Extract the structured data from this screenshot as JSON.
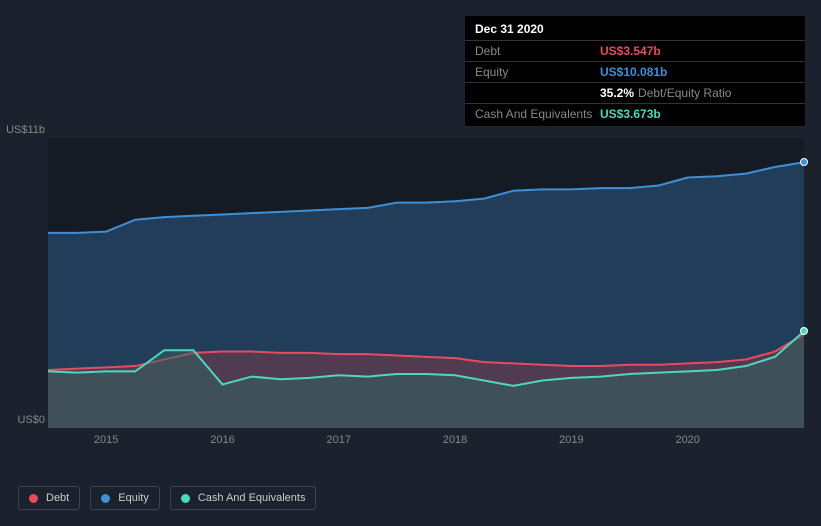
{
  "tooltip": {
    "date": "Dec 31 2020",
    "rows": [
      {
        "label": "Debt",
        "value": "US$3.547b",
        "color": "#e64c5e"
      },
      {
        "label": "Equity",
        "value": "US$10.081b",
        "color": "#3d8fd6"
      },
      {
        "label": "",
        "value": "35.2%",
        "suffix": "Debt/Equity Ratio",
        "color": "#ffffff"
      },
      {
        "label": "Cash And Equivalents",
        "value": "US$3.673b",
        "color": "#4fd6c2"
      }
    ]
  },
  "chart": {
    "type": "area",
    "background_color": "#151b24",
    "page_background": "#1b222d",
    "y_min": 0,
    "y_max": 11,
    "y_labels": [
      {
        "text": "US$11b",
        "v": 11
      },
      {
        "text": "US$0",
        "v": 0
      }
    ],
    "x_min": 2014.5,
    "x_max": 2021,
    "x_ticks": [
      {
        "text": "2015",
        "v": 2015
      },
      {
        "text": "2016",
        "v": 2016
      },
      {
        "text": "2017",
        "v": 2017
      },
      {
        "text": "2018",
        "v": 2018
      },
      {
        "text": "2019",
        "v": 2019
      },
      {
        "text": "2020",
        "v": 2020
      }
    ],
    "series": [
      {
        "name": "Equity",
        "stroke": "#3d8fd6",
        "fill": "#2d5a87",
        "fill_opacity": 0.55,
        "stroke_width": 2,
        "data": [
          [
            2014.5,
            7.4
          ],
          [
            2014.75,
            7.4
          ],
          [
            2015,
            7.45
          ],
          [
            2015.25,
            7.9
          ],
          [
            2015.5,
            8.0
          ],
          [
            2015.75,
            8.05
          ],
          [
            2016,
            8.1
          ],
          [
            2016.25,
            8.15
          ],
          [
            2016.5,
            8.2
          ],
          [
            2016.75,
            8.25
          ],
          [
            2017,
            8.3
          ],
          [
            2017.25,
            8.35
          ],
          [
            2017.5,
            8.55
          ],
          [
            2017.75,
            8.55
          ],
          [
            2018,
            8.6
          ],
          [
            2018.25,
            8.7
          ],
          [
            2018.5,
            9.0
          ],
          [
            2018.75,
            9.05
          ],
          [
            2019,
            9.05
          ],
          [
            2019.25,
            9.1
          ],
          [
            2019.5,
            9.1
          ],
          [
            2019.75,
            9.2
          ],
          [
            2020,
            9.5
          ],
          [
            2020.25,
            9.55
          ],
          [
            2020.5,
            9.65
          ],
          [
            2020.75,
            9.9
          ],
          [
            2021,
            10.08
          ]
        ]
      },
      {
        "name": "Debt",
        "stroke": "#e64c5e",
        "fill": "#8b3a44",
        "fill_opacity": 0.45,
        "stroke_width": 2,
        "data": [
          [
            2014.5,
            2.2
          ],
          [
            2014.75,
            2.25
          ],
          [
            2015,
            2.3
          ],
          [
            2015.25,
            2.35
          ],
          [
            2015.5,
            2.6
          ],
          [
            2015.75,
            2.85
          ],
          [
            2016,
            2.9
          ],
          [
            2016.25,
            2.9
          ],
          [
            2016.5,
            2.85
          ],
          [
            2016.75,
            2.85
          ],
          [
            2017,
            2.8
          ],
          [
            2017.25,
            2.8
          ],
          [
            2017.5,
            2.75
          ],
          [
            2017.75,
            2.7
          ],
          [
            2018,
            2.65
          ],
          [
            2018.25,
            2.5
          ],
          [
            2018.5,
            2.45
          ],
          [
            2018.75,
            2.4
          ],
          [
            2019,
            2.35
          ],
          [
            2019.25,
            2.35
          ],
          [
            2019.5,
            2.4
          ],
          [
            2019.75,
            2.4
          ],
          [
            2020,
            2.45
          ],
          [
            2020.25,
            2.5
          ],
          [
            2020.5,
            2.6
          ],
          [
            2020.75,
            2.9
          ],
          [
            2021,
            3.55
          ]
        ]
      },
      {
        "name": "Cash And Equivalents",
        "stroke": "#4fd6c2",
        "fill": "#2d6b62",
        "fill_opacity": 0.45,
        "stroke_width": 2,
        "data": [
          [
            2014.5,
            2.15
          ],
          [
            2014.75,
            2.1
          ],
          [
            2015,
            2.15
          ],
          [
            2015.25,
            2.15
          ],
          [
            2015.5,
            2.95
          ],
          [
            2015.75,
            2.95
          ],
          [
            2016,
            1.65
          ],
          [
            2016.25,
            1.95
          ],
          [
            2016.5,
            1.85
          ],
          [
            2016.75,
            1.9
          ],
          [
            2017,
            2.0
          ],
          [
            2017.25,
            1.95
          ],
          [
            2017.5,
            2.05
          ],
          [
            2017.75,
            2.05
          ],
          [
            2018,
            2.0
          ],
          [
            2018.25,
            1.8
          ],
          [
            2018.5,
            1.6
          ],
          [
            2018.75,
            1.8
          ],
          [
            2019,
            1.9
          ],
          [
            2019.25,
            1.95
          ],
          [
            2019.5,
            2.05
          ],
          [
            2019.75,
            2.1
          ],
          [
            2020,
            2.15
          ],
          [
            2020.25,
            2.2
          ],
          [
            2020.5,
            2.35
          ],
          [
            2020.75,
            2.7
          ],
          [
            2021,
            3.67
          ]
        ]
      }
    ],
    "markers": [
      {
        "series": "Equity",
        "v": 10.08,
        "color": "#3d8fd6"
      },
      {
        "series": "Cash And Equivalents",
        "v": 3.67,
        "color": "#4fd6c2"
      }
    ]
  },
  "legend": {
    "items": [
      {
        "label": "Debt",
        "color": "#e64c5e"
      },
      {
        "label": "Equity",
        "color": "#3d8fd6"
      },
      {
        "label": "Cash And Equivalents",
        "color": "#4fd6c2"
      }
    ]
  }
}
